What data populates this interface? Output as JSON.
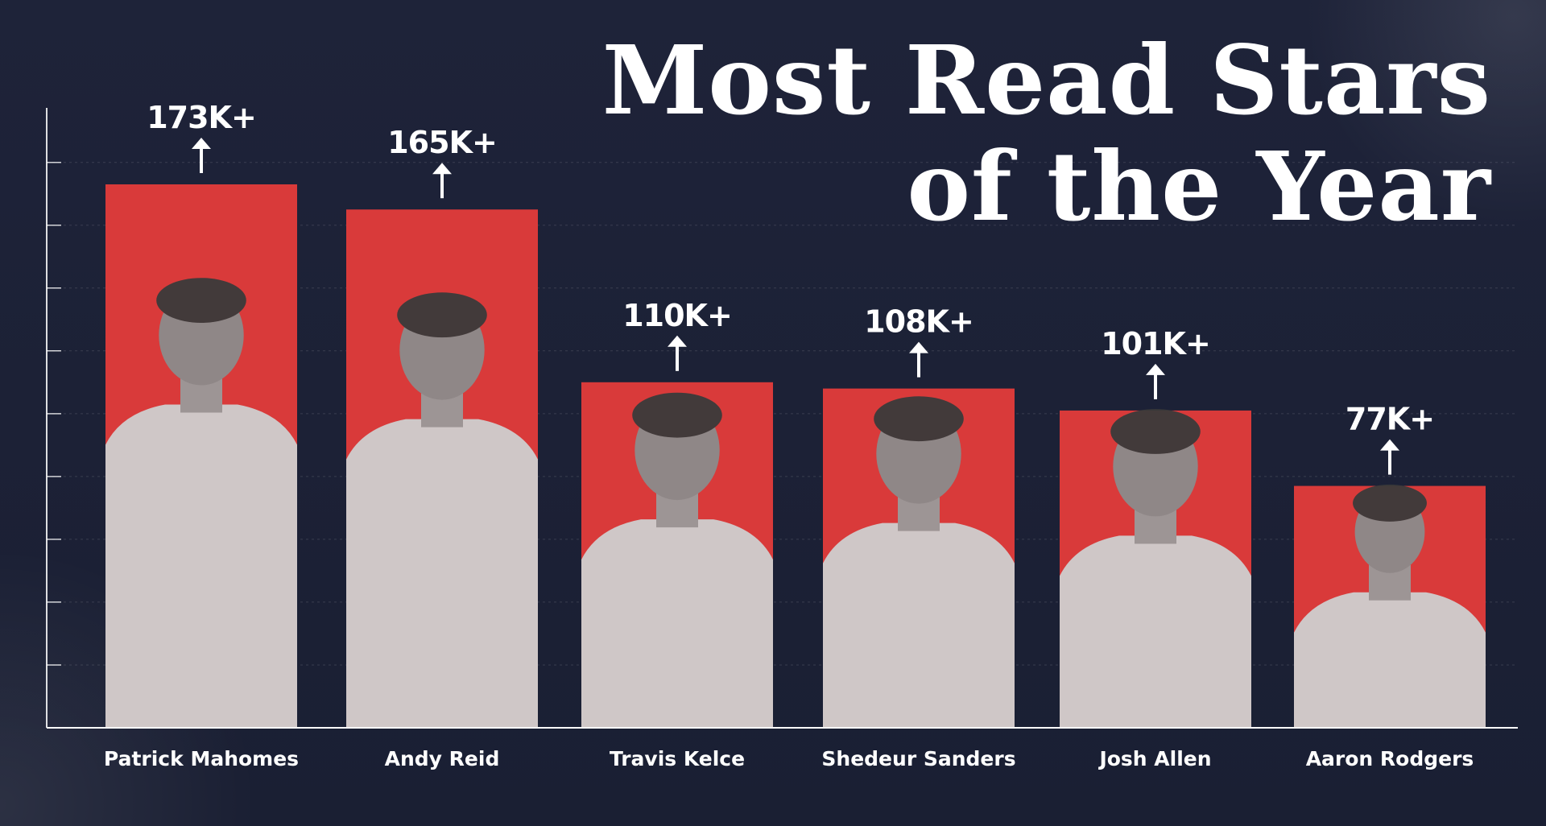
{
  "title": {
    "line1": "Most Read Stars",
    "line2": "of the Year"
  },
  "colors": {
    "background": "#1b2035",
    "bar": "#d93a3a",
    "text": "#ffffff",
    "photo_gray": "#8a8a8a"
  },
  "chart_data": {
    "type": "bar",
    "title": "Most Read Stars of the Year",
    "categories": [
      "Patrick Mahomes",
      "Andy Reid",
      "Travis Kelce",
      "Shedeur Sanders",
      "Josh Allen",
      "Aaron Rodgers"
    ],
    "values": [
      173000,
      165000,
      110000,
      108000,
      101000,
      77000
    ],
    "data_labels": [
      "173K+",
      "165K+",
      "110K+",
      "108K+",
      "101K+",
      "77K+"
    ],
    "bar_images": [
      "photo of Patrick Mahomes",
      "photo of Andy Reid",
      "photo of Travis Kelce",
      "photo of Shedeur Sanders",
      "photo of Josh Allen",
      "photo of Aaron Rodgers"
    ],
    "ylim": [
      0,
      200000
    ],
    "grid": true,
    "legend": "none"
  }
}
